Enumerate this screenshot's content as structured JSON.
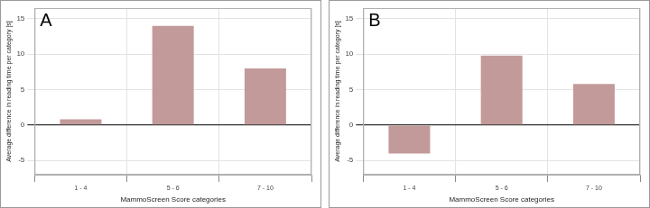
{
  "chart_data": [
    {
      "type": "bar",
      "title": "A",
      "categories": [
        "1 - 4",
        "5 - 6",
        "7 - 10"
      ],
      "values": [
        0.8,
        14,
        8
      ],
      "color": "#c39a9a",
      "x_label": "MammoScreen Score categories",
      "y_label": "Average difference in reading time per category [s]",
      "ylim": [
        -7,
        16.5
      ],
      "yticks": [
        -5,
        0,
        5,
        10,
        15
      ],
      "grid": true
    },
    {
      "type": "bar",
      "title": "B",
      "categories": [
        "1 - 4",
        "5 - 6",
        "7 - 10"
      ],
      "values": [
        -4,
        9.8,
        5.8
      ],
      "color": "#c39a9a",
      "x_label": "MammoScreen Score categories",
      "y_label": "Average difference in reading time per category [s]",
      "ylim": [
        -7,
        16.5
      ],
      "yticks": [
        -5,
        0,
        5,
        10,
        15
      ],
      "grid": true
    }
  ]
}
